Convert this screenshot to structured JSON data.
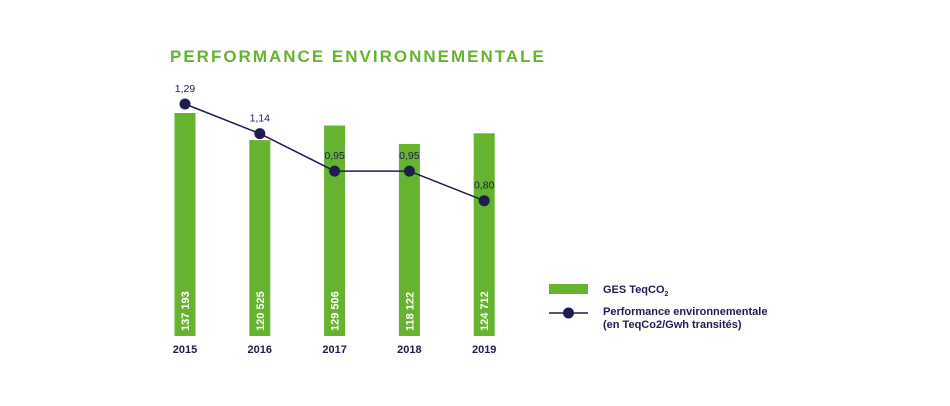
{
  "chart_data": {
    "type": "bar",
    "title": "PERFORMANCE ENVIRONNEMENTALE",
    "categories": [
      "2015",
      "2016",
      "2017",
      "2018",
      "2019"
    ],
    "series": [
      {
        "name": "GES TeqCO2",
        "kind": "bar",
        "values": [
          137193,
          120525,
          129506,
          118122,
          124712
        ],
        "labels": [
          "137 193",
          "120 525",
          "129 506",
          "118 122",
          "124 712"
        ]
      },
      {
        "name": "Performance environnementale (en TeqCo2/Gwh transités)",
        "kind": "line",
        "values": [
          1.29,
          1.14,
          0.95,
          0.95,
          0.8
        ],
        "labels": [
          "1,29",
          "1,14",
          "0,95",
          "0,95",
          "0,80"
        ]
      }
    ],
    "legend": {
      "position": "right",
      "bar_label_main": "GES TeqCO",
      "bar_label_sub": "2",
      "line_label_1": "Performance environnementale",
      "line_label_2": "(en TeqCo2/Gwh transités)"
    },
    "grid": false,
    "colors": {
      "bar": "#65b32e",
      "line": "#1f1d4f",
      "title": "#65b32e",
      "text": "#1f1d4f",
      "bar_text": "#ffffff"
    }
  }
}
